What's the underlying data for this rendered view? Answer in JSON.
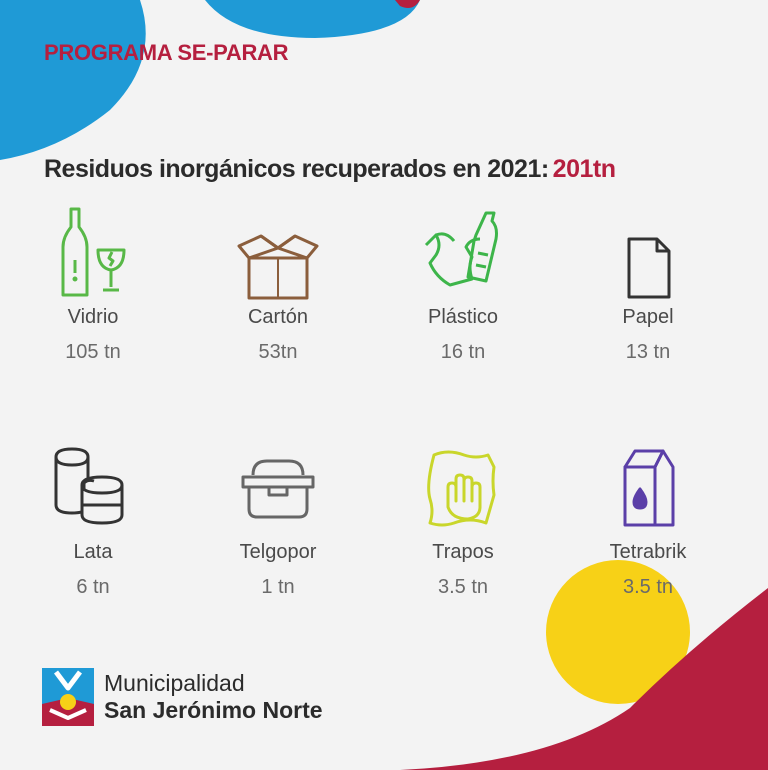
{
  "program_title": "PROGRAMA SE-PARAR",
  "headline": {
    "text": "Residuos inorgánicos recuperados en  2021:",
    "total": "201tn"
  },
  "items": [
    {
      "name": "Vidrio",
      "value": "105 tn",
      "icon": "glass-bottle-icon",
      "color": "#58b847"
    },
    {
      "name": "Cartón",
      "value": "53tn",
      "icon": "cardboard-box-icon",
      "color": "#8b5e3c"
    },
    {
      "name": "Plástico",
      "value": "16 tn",
      "icon": "plastic-bag-bottle-icon",
      "color": "#3db54a"
    },
    {
      "name": "Papel",
      "value": "13 tn",
      "icon": "paper-sheet-icon",
      "color": "#333333"
    },
    {
      "name": "Lata",
      "value": "6 tn",
      "icon": "cans-icon",
      "color": "#333333"
    },
    {
      "name": "Telgopor",
      "value": "1 tn",
      "icon": "foam-container-icon",
      "color": "#666666"
    },
    {
      "name": "Trapos",
      "value": "3.5 tn",
      "icon": "rag-hand-icon",
      "color": "#c9d62b"
    },
    {
      "name": "Tetrabrik",
      "value": "3.5 tn",
      "icon": "tetrabrik-icon",
      "color": "#5b3fa8"
    }
  ],
  "footer": {
    "line1": "Municipalidad",
    "line2": "San Jerónimo Norte"
  },
  "colors": {
    "accent": "#b51f3f",
    "blue": "#1f9ad6",
    "yellow": "#f7d117",
    "text": "#2b2b2b"
  }
}
